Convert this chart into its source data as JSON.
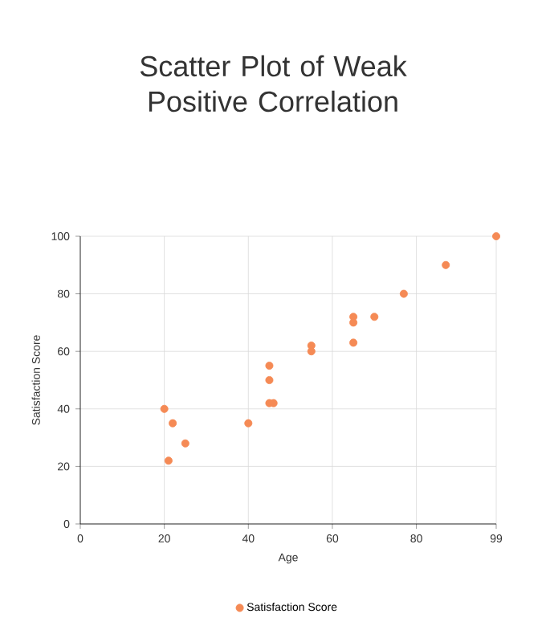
{
  "chart_data": {
    "type": "scatter",
    "title": "Scatter Plot of Weak Positive Correlation",
    "xlabel": "Age",
    "ylabel": "Satisfaction Score",
    "x": [
      20,
      22,
      21,
      25,
      40,
      45,
      45,
      45,
      46,
      55,
      55,
      65,
      65,
      65,
      70,
      77,
      87,
      99
    ],
    "series": [
      {
        "name": "Satisfaction Score",
        "color": "#f58a55",
        "values": [
          40,
          35,
          22,
          28,
          35,
          55,
          50,
          42,
          42,
          62,
          60,
          72,
          70,
          63,
          72,
          80,
          90,
          100
        ]
      }
    ],
    "xlim": [
      0,
      99
    ],
    "ylim": [
      0,
      100
    ],
    "xticks": [
      0,
      20,
      40,
      60,
      80,
      99
    ],
    "yticks": [
      0,
      20,
      40,
      60,
      80,
      100
    ],
    "grid": true,
    "legend": "bottom",
    "marker": "circle"
  }
}
